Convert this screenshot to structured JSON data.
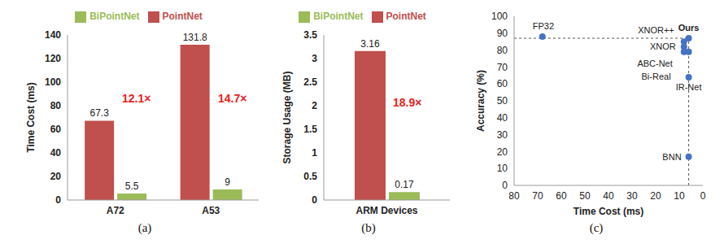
{
  "chart_data": [
    {
      "type": "bar",
      "title": "(a)",
      "y_label": "Time Cost (ms)",
      "categories": [
        "A72",
        "A53"
      ],
      "series": [
        {
          "name": "PointNet",
          "color": "#c0504d",
          "values": [
            67.3,
            131.8
          ]
        },
        {
          "name": "BiPointNet",
          "color": "#9bbb59",
          "values": [
            5.5,
            9
          ]
        }
      ],
      "ylim": [
        0,
        140
      ],
      "yticks": [
        0,
        20,
        40,
        60,
        80,
        100,
        120,
        140
      ],
      "grid": false,
      "legend": "top",
      "data_labels": true,
      "annotations": [
        "12.1×",
        "14.7×"
      ]
    },
    {
      "type": "bar",
      "title": "(b)",
      "y_label": "Storage Usage (MB)",
      "categories": [
        "ARM Devices"
      ],
      "series": [
        {
          "name": "PointNet",
          "color": "#c0504d",
          "values": [
            3.16
          ]
        },
        {
          "name": "BiPointNet",
          "color": "#9bbb59",
          "values": [
            0.17
          ]
        }
      ],
      "ylim": [
        0,
        3.5
      ],
      "yticks": [
        0,
        0.5,
        1,
        1.5,
        2,
        2.5,
        3,
        3.5
      ],
      "grid": false,
      "legend": "top",
      "data_labels": true,
      "annotations": [
        "18.9×"
      ]
    },
    {
      "type": "scatter",
      "title": "(c)",
      "x_label": "Time Cost (ms)",
      "y_label": "Accuracy (%)",
      "color": "#4472c4",
      "marker": "circle",
      "grid": false,
      "xlim": [
        80,
        0
      ],
      "xticks": [
        80,
        70,
        60,
        50,
        40,
        30,
        20,
        10,
        0
      ],
      "ylim": [
        0,
        100
      ],
      "yticks": [
        0,
        10,
        20,
        30,
        40,
        50,
        60,
        70,
        80,
        90,
        100
      ],
      "points": [
        {
          "name": "Ours",
          "x": 6,
          "y": 87
        },
        {
          "name": "XNOR++",
          "x": 8,
          "y": 85
        },
        {
          "name": "XNOR",
          "x": 8,
          "y": 82
        },
        {
          "name": "ABC-Net",
          "x": 8,
          "y": 79
        },
        {
          "name": "Bi-Real",
          "x": 6,
          "y": 79
        },
        {
          "name": "IR-Net",
          "x": 6,
          "y": 64
        },
        {
          "name": "BNN",
          "x": 6,
          "y": 17
        },
        {
          "name": "FP32",
          "x": 68,
          "y": 88
        }
      ]
    }
  ]
}
